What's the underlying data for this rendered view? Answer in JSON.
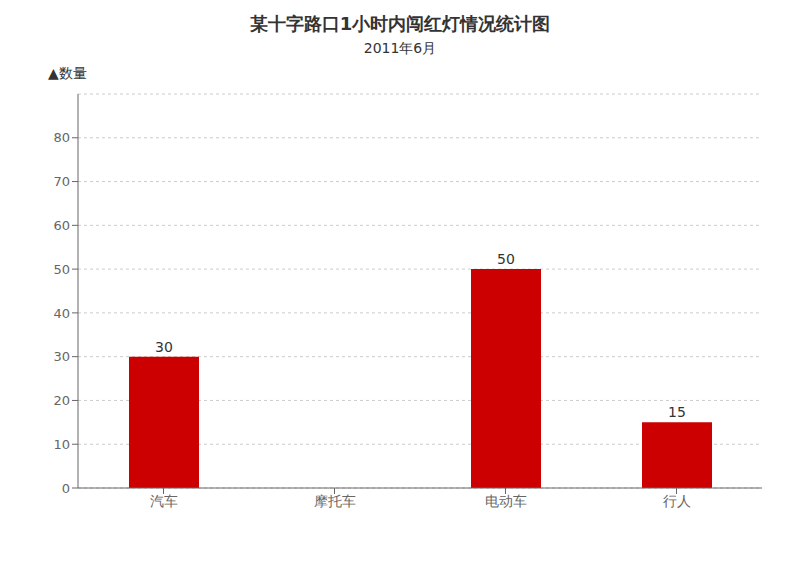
{
  "chart_data": {
    "type": "bar",
    "title": "某十字路口1小时内闯红灯情况统计图",
    "subtitle": "2011年6月",
    "y_label": "▲数量",
    "categories": [
      "汽车",
      "摩托车",
      "电动车",
      "行人"
    ],
    "values": [
      30,
      null,
      50,
      15
    ],
    "color": "#cc0000",
    "ylim": [
      0,
      90
    ],
    "yticks": [
      0,
      10,
      20,
      30,
      40,
      50,
      60,
      70,
      80
    ],
    "grid": true,
    "data_labels": true
  }
}
